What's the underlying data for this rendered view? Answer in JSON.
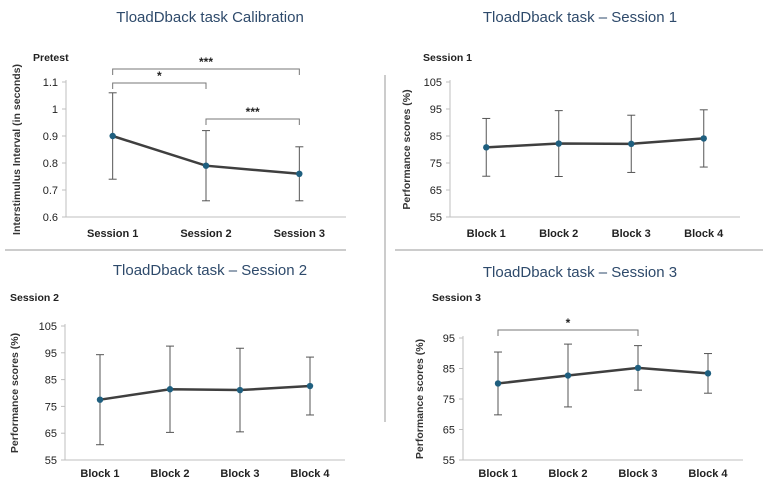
{
  "colors": {
    "line": "#3f3f3f",
    "marker": "#1f5f7f",
    "axis": "#bfbfbf",
    "title": "#2e4a6b",
    "divider": "#999999"
  },
  "chart_data": [
    {
      "type": "line",
      "title": "TloadDback task Calibration",
      "subtitle": "Pretest",
      "ylabel": "Interstimulus Interval (in seconds)",
      "xlabel": "",
      "categories": [
        "Session 1",
        "Session 2",
        "Session 3"
      ],
      "values": [
        0.9,
        0.79,
        0.76
      ],
      "errors": [
        0.16,
        0.13,
        0.1
      ],
      "ylim": [
        0.6,
        1.1
      ],
      "yticks": [
        "0.6",
        "0.7",
        "0.8",
        "0.9",
        "1",
        "1.1"
      ],
      "significance": [
        {
          "from": 0,
          "to": 1,
          "label": "*"
        },
        {
          "from": 0,
          "to": 2,
          "label": "***"
        },
        {
          "from": 1,
          "to": 2,
          "label": "***"
        }
      ]
    },
    {
      "type": "line",
      "title": "TloadDback task – Session 1",
      "subtitle": "Session 1",
      "ylabel": "Performance scores (%)",
      "xlabel": "",
      "categories": [
        "Block 1",
        "Block 2",
        "Block 3",
        "Block 4"
      ],
      "values": [
        80.8,
        82.2,
        82.1,
        84.1
      ],
      "errors": [
        10.7,
        12.2,
        10.6,
        10.6
      ],
      "ylim": [
        55,
        105
      ],
      "yticks": [
        "55",
        "65",
        "75",
        "85",
        "95",
        "105"
      ],
      "significance": []
    },
    {
      "type": "line",
      "title": "TloadDback task – Session 2",
      "subtitle": "Session 2",
      "ylabel": "Performance scores (%)",
      "xlabel": "",
      "categories": [
        "Block 1",
        "Block 2",
        "Block 3",
        "Block 4"
      ],
      "values": [
        77.5,
        81.4,
        81.1,
        82.6
      ],
      "errors": [
        16.8,
        16.1,
        15.6,
        10.8
      ],
      "ylim": [
        55,
        105
      ],
      "yticks": [
        "55",
        "65",
        "75",
        "85",
        "95",
        "105"
      ],
      "significance": []
    },
    {
      "type": "line",
      "title": "TloadDback task – Session 3",
      "subtitle": "Session 3",
      "ylabel": "Performance scores (%)",
      "xlabel": "",
      "categories": [
        "Block 1",
        "Block 2",
        "Block 3",
        "Block 4"
      ],
      "values": [
        80.1,
        82.7,
        85.2,
        83.4
      ],
      "errors": [
        10.3,
        10.3,
        7.3,
        6.5
      ],
      "ylim": [
        55,
        95
      ],
      "yticks": [
        "55",
        "65",
        "75",
        "85",
        "95"
      ],
      "significance": [
        {
          "from": 0,
          "to": 2,
          "label": "*"
        }
      ]
    }
  ]
}
